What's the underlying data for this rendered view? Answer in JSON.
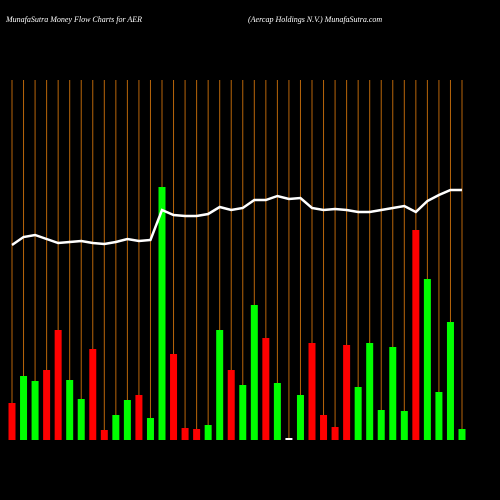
{
  "chart_data": {
    "type": "bar",
    "title": "MunafaSutra  Money Flow  Charts for AER",
    "subtitle": "(Aercap Holdings N.V.) MunafaSutra.com",
    "ylim": [
      0,
      360
    ],
    "y2lim": [
      0,
      360
    ],
    "grid": true,
    "grid_color": "#b8650a",
    "background": "#000000",
    "series": [
      {
        "type": "bar",
        "values": [
          37,
          64,
          59,
          70,
          110,
          60,
          41,
          91,
          10,
          25,
          40,
          45,
          22,
          253,
          86,
          12,
          11,
          15,
          110,
          70,
          55,
          135,
          102,
          57,
          2,
          45,
          97,
          25,
          13,
          95,
          53,
          97,
          30,
          93,
          29,
          210,
          161,
          48,
          118,
          11
        ],
        "colors": [
          "#ff0000",
          "#00ff00",
          "#00ff00",
          "#ff0000",
          "#ff0000",
          "#00ff00",
          "#00ff00",
          "#ff0000",
          "#ff0000",
          "#00ff00",
          "#00ff00",
          "#ff0000",
          "#00ff00",
          "#00ff00",
          "#ff0000",
          "#ff0000",
          "#ff0000",
          "#00ff00",
          "#00ff00",
          "#ff0000",
          "#00ff00",
          "#00ff00",
          "#ff0000",
          "#00ff00",
          "#ffffff",
          "#00ff00",
          "#ff0000",
          "#ff0000",
          "#ff0000",
          "#ff0000",
          "#00ff00",
          "#00ff00",
          "#00ff00",
          "#00ff00",
          "#00ff00",
          "#ff0000",
          "#00ff00",
          "#00ff00",
          "#00ff00",
          "#00ff00"
        ]
      },
      {
        "type": "line",
        "axis": "y2",
        "color": "#ffffff",
        "values": [
          195,
          203,
          205,
          201,
          197,
          198,
          199,
          197,
          196,
          198,
          201,
          199,
          200,
          230,
          225,
          224,
          224,
          226,
          233,
          230,
          232,
          240,
          240,
          244,
          241,
          242,
          232,
          230,
          231,
          230,
          228,
          228,
          230,
          232,
          234,
          228,
          239,
          245,
          250,
          250
        ]
      }
    ]
  }
}
